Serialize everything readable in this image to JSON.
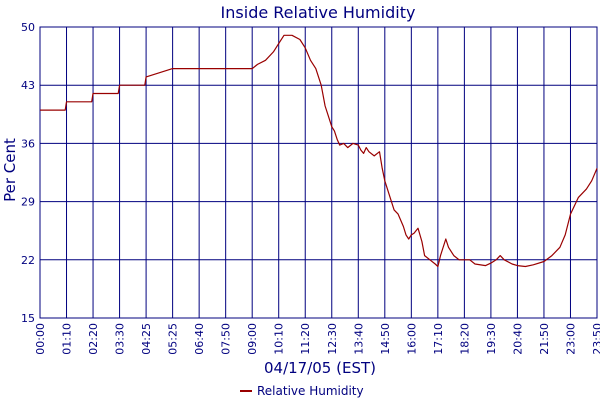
{
  "chart_data": {
    "type": "line",
    "title": "Inside Relative Humidity",
    "xlabel": "04/17/05 (EST)",
    "ylabel": "Per Cent",
    "ylim": [
      15,
      50
    ],
    "yticks": [
      15,
      22,
      29,
      36,
      43,
      50
    ],
    "x_ticks": [
      "00:00",
      "01:10",
      "02:20",
      "03:30",
      "04:25",
      "05:25",
      "06:40",
      "07:50",
      "09:00",
      "10:10",
      "11:20",
      "12:30",
      "13:40",
      "14:50",
      "16:00",
      "17:10",
      "18:20",
      "19:30",
      "20:40",
      "21:50",
      "23:00",
      "23:50"
    ],
    "grid": true,
    "legend_position": "bottom-center",
    "colors": {
      "title": "#00007f",
      "grid": "#00007f",
      "series": "#990000"
    },
    "series": [
      {
        "name": "Relative Humidity",
        "tick_index": [
          0,
          0.95,
          1.0,
          1.95,
          2.0,
          2.95,
          3.0,
          3.95,
          4.0,
          5.0,
          5.5,
          6.05,
          6.3,
          6.5,
          6.8,
          7.0,
          7.5,
          7.7,
          8.0,
          8.2,
          8.5,
          8.8,
          9.0,
          9.2,
          9.3,
          9.5,
          9.8,
          10.0,
          10.2,
          10.4,
          10.6,
          10.75,
          10.85,
          11.0,
          11.1,
          11.2,
          11.3,
          11.45,
          11.6,
          11.8,
          12.0,
          12.1,
          12.2,
          12.3,
          12.4,
          12.6,
          12.8,
          12.9,
          13.0,
          13.2,
          13.35,
          13.5,
          13.7,
          13.8,
          13.9,
          14.0,
          14.1,
          14.25,
          14.4,
          14.5,
          14.7,
          14.9,
          15.0,
          15.1,
          15.3,
          15.4,
          15.6,
          15.8,
          16.0,
          16.2,
          16.4,
          16.8,
          17.0,
          17.2,
          17.35,
          17.5,
          17.8,
          18.0,
          18.3,
          18.6,
          19.0,
          19.3,
          19.6,
          19.8,
          20.0,
          20.3,
          20.6,
          20.8,
          21.0
        ],
        "values": [
          40,
          40,
          41,
          41,
          42,
          42,
          43,
          43,
          44,
          45,
          45,
          45,
          45,
          45,
          45,
          45,
          45,
          45,
          45,
          45.5,
          46,
          47,
          48,
          49,
          49,
          49,
          48.5,
          47.5,
          46,
          45,
          43,
          40.5,
          39.5,
          38,
          37.5,
          36.5,
          35.8,
          36,
          35.5,
          36,
          35.8,
          35.2,
          34.8,
          35.5,
          35,
          34.5,
          35,
          33,
          31.5,
          29.5,
          28,
          27.5,
          26,
          25,
          24.5,
          25,
          25.2,
          25.8,
          24.2,
          22.5,
          22,
          21.5,
          21.2,
          22.5,
          24.5,
          23.5,
          22.5,
          22,
          22,
          22,
          21.5,
          21.3,
          21.6,
          22,
          22.5,
          22,
          21.5,
          21.3,
          21.2,
          21.4,
          21.8,
          22.5,
          23.5,
          25,
          27.5,
          29.5,
          30.5,
          31.5,
          33
        ]
      }
    ]
  }
}
